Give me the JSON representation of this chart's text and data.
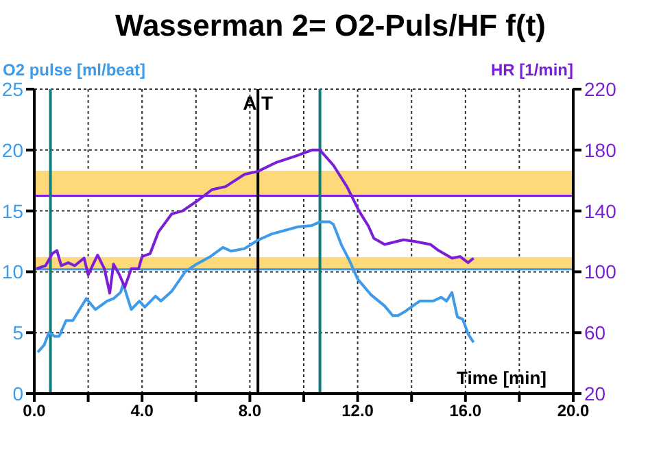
{
  "chart_data": {
    "type": "line",
    "title": "Wasserman 2= O2-Puls/HF f(t)",
    "xlabel": "Time [min]",
    "ylabel": "O2 pulse [ml/beat]",
    "y2label": "HR [1/min]",
    "xlim": [
      0,
      20
    ],
    "xticks": [
      {
        "value": 0,
        "label": "0.0"
      },
      {
        "value": 2,
        "label": null
      },
      {
        "value": 4,
        "label": "4.0"
      },
      {
        "value": 6,
        "label": null
      },
      {
        "value": 8,
        "label": "8.0"
      },
      {
        "value": 10,
        "label": null
      },
      {
        "value": 12,
        "label": "12.0"
      },
      {
        "value": 14,
        "label": null
      },
      {
        "value": 16,
        "label": "16.0"
      },
      {
        "value": 18,
        "label": null
      },
      {
        "value": 20,
        "label": "20.0"
      }
    ],
    "ylim": [
      0,
      25
    ],
    "yticks": [
      0,
      5,
      10,
      15,
      20,
      25
    ],
    "y2lim": [
      20,
      220
    ],
    "y2ticks": [
      20,
      60,
      100,
      140,
      180,
      220
    ],
    "grid": true,
    "legend": false,
    "marker": "none",
    "line_style": "solid",
    "series": [
      {
        "color": "#3d9be9",
        "x": [
          0.13,
          0.37,
          0.54,
          0.76,
          0.92,
          1.18,
          1.43,
          1.93,
          2.27,
          2.7,
          2.94,
          3.2,
          3.3,
          3.6,
          3.9,
          4.1,
          4.5,
          4.7,
          5.1,
          5.6,
          6.0,
          6.5,
          7.0,
          7.3,
          7.8,
          8.3,
          8.8,
          9.3,
          9.8,
          10.3,
          10.6,
          10.96,
          11.1,
          11.4,
          11.7,
          12.0,
          12.5,
          13.0,
          13.3,
          13.5,
          13.8,
          14.3,
          14.8,
          15.1,
          15.3,
          15.5,
          15.7,
          15.9,
          16.1,
          16.3
        ],
        "values": [
          3.4,
          4.0,
          5.0,
          4.7,
          4.7,
          6.0,
          6.0,
          7.8,
          6.9,
          7.6,
          7.8,
          8.3,
          9.0,
          6.9,
          7.6,
          7.1,
          8.0,
          7.6,
          8.4,
          10.0,
          10.6,
          11.2,
          12.0,
          11.7,
          11.9,
          12.6,
          13.1,
          13.4,
          13.7,
          13.8,
          14.1,
          14.1,
          13.9,
          12.2,
          10.9,
          9.4,
          8.1,
          7.2,
          6.4,
          6.4,
          6.8,
          7.6,
          7.6,
          7.9,
          7.6,
          8.3,
          6.3,
          6.1,
          4.9,
          4.2
        ]
      },
      {
        "color": "#7a1fd6",
        "axis": "y2",
        "x": [
          0.08,
          0.42,
          0.67,
          0.84,
          1.0,
          1.26,
          1.5,
          1.85,
          2.0,
          2.35,
          2.6,
          2.8,
          2.94,
          3.16,
          3.36,
          3.6,
          3.87,
          4.0,
          4.3,
          4.6,
          5.1,
          5.5,
          6.0,
          6.6,
          7.1,
          7.8,
          8.3,
          9.0,
          9.7,
          10.3,
          10.6,
          11.1,
          11.6,
          12.05,
          12.4,
          12.6,
          13.0,
          13.7,
          14.1,
          14.7,
          15.0,
          15.5,
          15.8,
          16.1,
          16.3
        ],
        "values": [
          102,
          104,
          112,
          114,
          104,
          106,
          104,
          109,
          98,
          111,
          102,
          86,
          105,
          98,
          90,
          102,
          102,
          110,
          112,
          126,
          138,
          140,
          146,
          154,
          156,
          164,
          166,
          172,
          176,
          180,
          180,
          170,
          156,
          140,
          130,
          122,
          118,
          121,
          120,
          118,
          114,
          109,
          110,
          106,
          109
        ]
      }
    ],
    "bands": [
      {
        "axis": "y",
        "from": 10.2,
        "to": 11.2,
        "label": null,
        "color": "#fdd97a"
      },
      {
        "axis": "y2",
        "from": 150.4,
        "to": 166.4,
        "label": null,
        "color": "#fdd97a"
      }
    ],
    "ref_lines": [
      {
        "axis": "y",
        "value": 10.2,
        "label": null,
        "color": "#3d9be9"
      },
      {
        "axis": "y2",
        "value": 150,
        "label": null,
        "color": "#7a1fd6"
      },
      {
        "axis": "x",
        "value": 0.6,
        "label": null,
        "color": "#127a7a"
      },
      {
        "axis": "x",
        "value": 10.6,
        "label": null,
        "color": "#127a7a"
      },
      {
        "axis": "x",
        "value": 8.3,
        "label": "A T",
        "color": "#000000"
      }
    ]
  }
}
